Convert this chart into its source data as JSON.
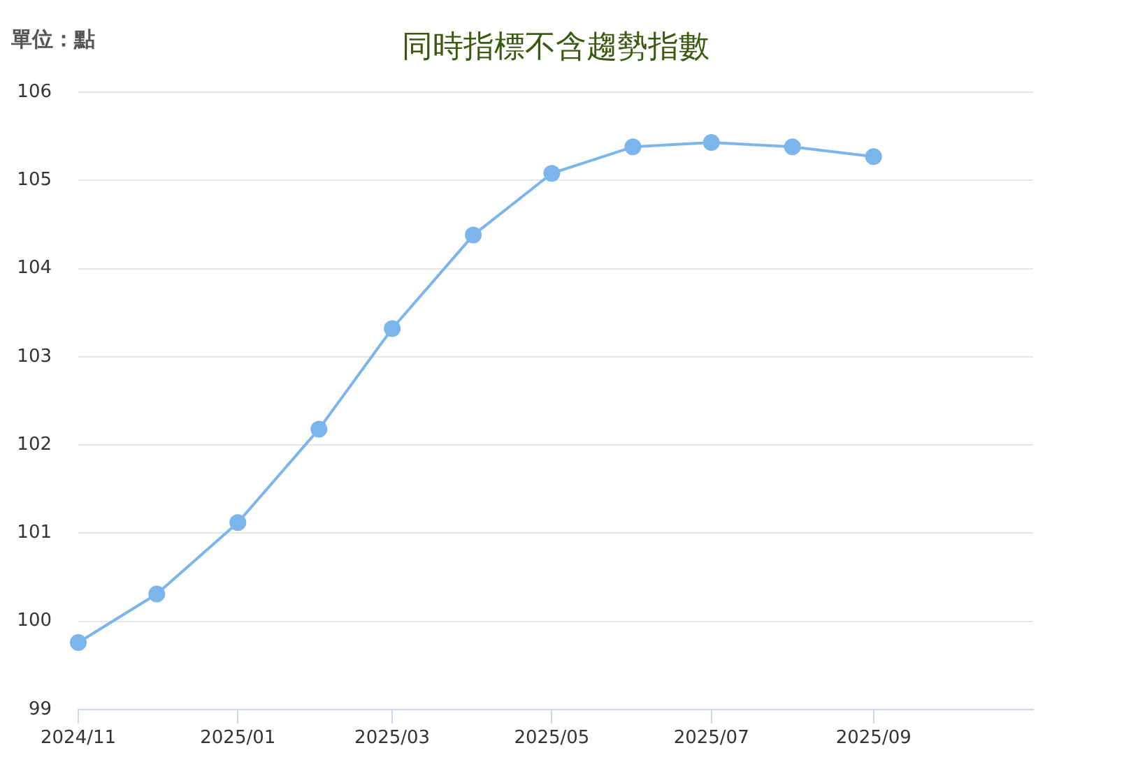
{
  "chart_data": {
    "type": "line",
    "title": "同時指標不含趨勢指數",
    "ylabel": "單位：點",
    "x": [
      "2024-11",
      "2024-12",
      "2025-01",
      "2025-02",
      "2025-03",
      "2025-04",
      "2025-05",
      "2025-06",
      "2025-07",
      "2025-08",
      "2025-09"
    ],
    "values": [
      99.76,
      100.31,
      101.12,
      102.18,
      103.32,
      104.38,
      105.08,
      105.38,
      105.43,
      105.38,
      105.27
    ],
    "color": "#7cb5ec",
    "xlim": [
      "2024-11",
      "2025-11"
    ],
    "xticks": [
      {
        "value": "2024-11",
        "label": "2024/11"
      },
      {
        "value": "2025-01",
        "label": "2025/01"
      },
      {
        "value": "2025-03",
        "label": "2025/03"
      },
      {
        "value": "2025-05",
        "label": "2025/05"
      },
      {
        "value": "2025-07",
        "label": "2025/07"
      },
      {
        "value": "2025-09",
        "label": "2025/09"
      }
    ],
    "ylim": [
      99,
      106
    ],
    "yticks": [
      99,
      100,
      101,
      102,
      103,
      104,
      105,
      106
    ],
    "grid": "y",
    "marker": "circle",
    "line_style": "solid"
  }
}
